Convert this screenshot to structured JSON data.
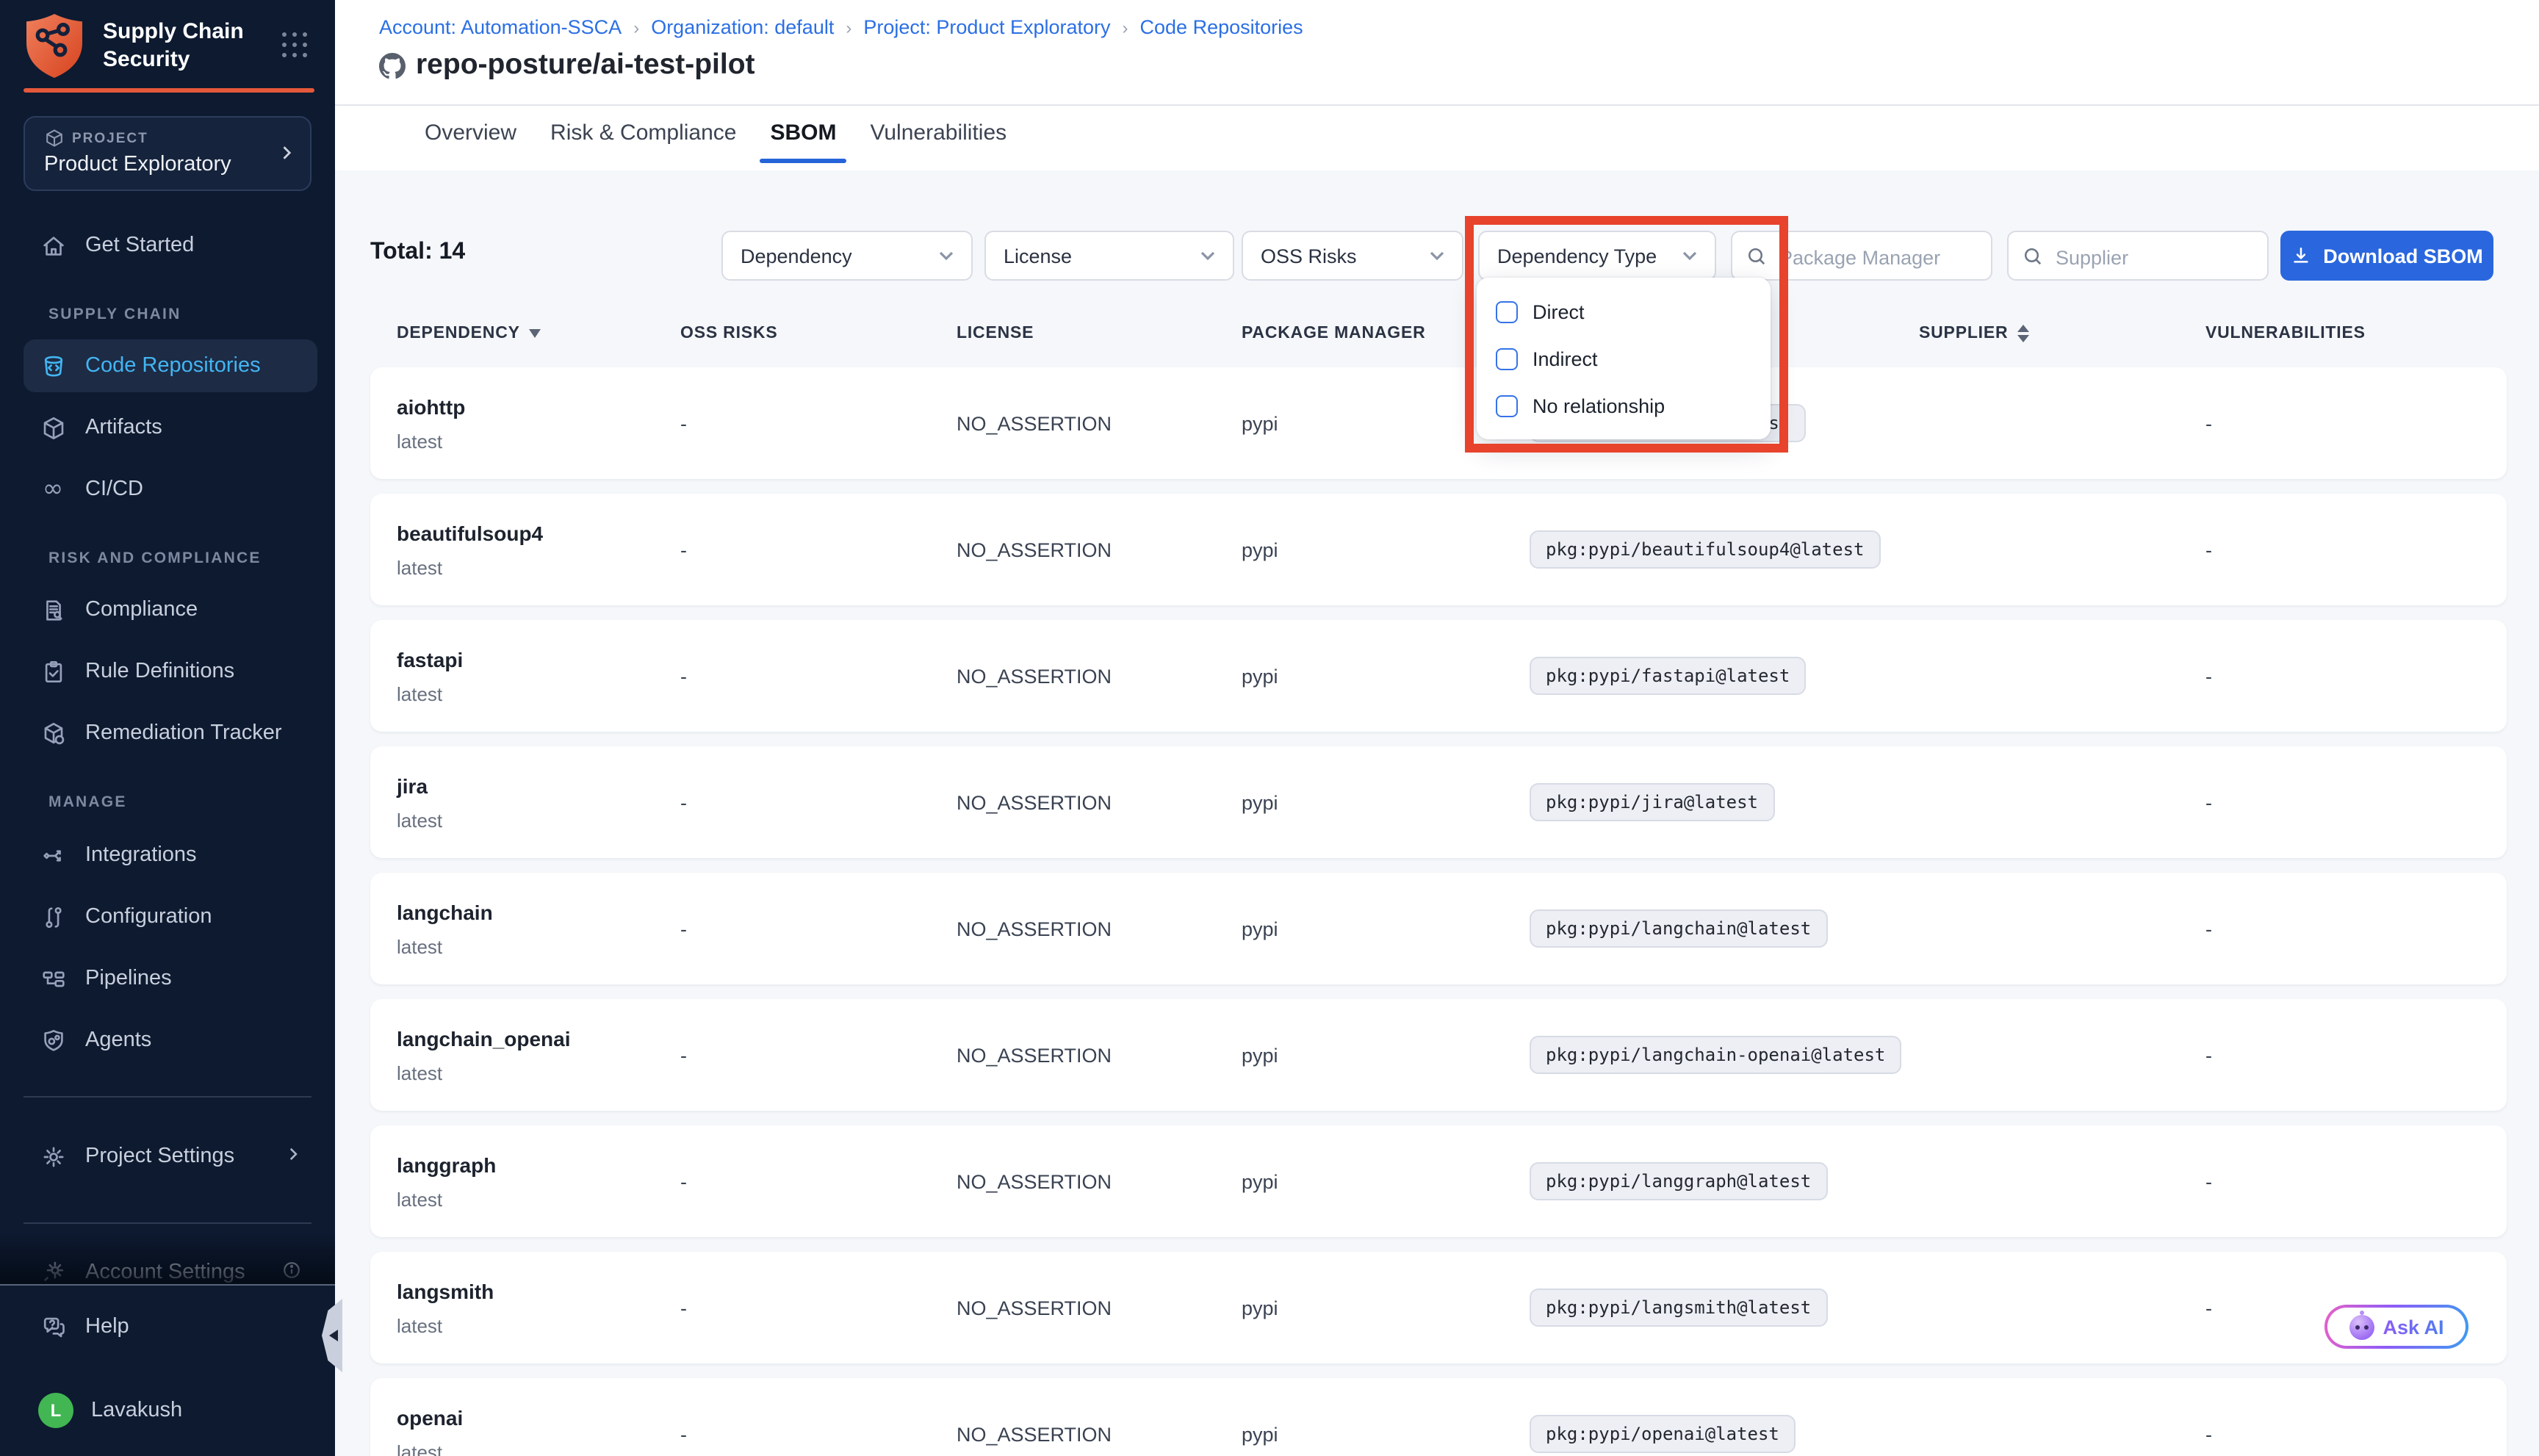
{
  "brand": {
    "app_line1": "Supply Chain",
    "app_line2": "Security"
  },
  "project_selector": {
    "label": "PROJECT",
    "name": "Product Exploratory"
  },
  "sidebar": {
    "get_started": "Get Started",
    "groups": [
      {
        "title": "SUPPLY CHAIN",
        "items": [
          {
            "label": "Code Repositories",
            "icon": "code-repositories-icon",
            "active": true
          },
          {
            "label": "Artifacts",
            "icon": "artifacts-icon",
            "active": false
          },
          {
            "label": "CI/CD",
            "icon": "cicd-icon",
            "active": false
          }
        ]
      },
      {
        "title": "RISK AND COMPLIANCE",
        "items": [
          {
            "label": "Compliance",
            "icon": "compliance-icon",
            "active": false
          },
          {
            "label": "Rule Definitions",
            "icon": "rule-definitions-icon",
            "active": false
          },
          {
            "label": "Remediation Tracker",
            "icon": "remediation-tracker-icon",
            "active": false
          }
        ]
      },
      {
        "title": "MANAGE",
        "items": [
          {
            "label": "Integrations",
            "icon": "integrations-icon",
            "active": false
          },
          {
            "label": "Configuration",
            "icon": "configuration-icon",
            "active": false
          },
          {
            "label": "Pipelines",
            "icon": "pipelines-icon",
            "active": false
          },
          {
            "label": "Agents",
            "icon": "agents-icon",
            "active": false
          }
        ]
      }
    ],
    "project_settings": "Project Settings",
    "account_settings": "Account Settings",
    "help": "Help",
    "user": {
      "name": "Lavakush",
      "initial": "L"
    }
  },
  "breadcrumb": [
    "Account: Automation-SSCA",
    "Organization: default",
    "Project: Product Exploratory",
    "Code Repositories"
  ],
  "page": {
    "title": "repo-posture/ai-test-pilot"
  },
  "tabs": [
    {
      "label": "Overview",
      "active": false
    },
    {
      "label": "Risk & Compliance",
      "active": false
    },
    {
      "label": "SBOM",
      "active": true
    },
    {
      "label": "Vulnerabilities",
      "active": false
    }
  ],
  "toolbar": {
    "total": "Total: 14",
    "filters": {
      "dependency": "Dependency",
      "license": "License",
      "oss_risks": "OSS Risks",
      "dependency_type": "Dependency Type"
    },
    "package_manager_placeholder": "Package Manager",
    "supplier_placeholder": "Supplier",
    "download_label": "Download SBOM"
  },
  "dependency_type_menu": {
    "options": [
      {
        "label": "Direct",
        "checked": false
      },
      {
        "label": "Indirect",
        "checked": false
      },
      {
        "label": "No relationship",
        "checked": false
      }
    ]
  },
  "table": {
    "headers": [
      "DEPENDENCY",
      "OSS RISKS",
      "LICENSE",
      "PACKAGE MANAGER",
      "",
      "SUPPLIER",
      "VULNERABILITIES"
    ],
    "rows": [
      {
        "name": "aiohttp",
        "version": "latest",
        "oss_risks": "-",
        "license": "NO_ASSERTION",
        "package_manager": "pypi",
        "purl": "pkg:pypi/aiohttp@latest",
        "supplier": "",
        "vulnerabilities": "-"
      },
      {
        "name": "beautifulsoup4",
        "version": "latest",
        "oss_risks": "-",
        "license": "NO_ASSERTION",
        "package_manager": "pypi",
        "purl": "pkg:pypi/beautifulsoup4@latest",
        "supplier": "",
        "vulnerabilities": "-"
      },
      {
        "name": "fastapi",
        "version": "latest",
        "oss_risks": "-",
        "license": "NO_ASSERTION",
        "package_manager": "pypi",
        "purl": "pkg:pypi/fastapi@latest",
        "supplier": "",
        "vulnerabilities": "-"
      },
      {
        "name": "jira",
        "version": "latest",
        "oss_risks": "-",
        "license": "NO_ASSERTION",
        "package_manager": "pypi",
        "purl": "pkg:pypi/jira@latest",
        "supplier": "",
        "vulnerabilities": "-"
      },
      {
        "name": "langchain",
        "version": "latest",
        "oss_risks": "-",
        "license": "NO_ASSERTION",
        "package_manager": "pypi",
        "purl": "pkg:pypi/langchain@latest",
        "supplier": "",
        "vulnerabilities": "-"
      },
      {
        "name": "langchain_openai",
        "version": "latest",
        "oss_risks": "-",
        "license": "NO_ASSERTION",
        "package_manager": "pypi",
        "purl": "pkg:pypi/langchain-openai@latest",
        "supplier": "",
        "vulnerabilities": "-"
      },
      {
        "name": "langgraph",
        "version": "latest",
        "oss_risks": "-",
        "license": "NO_ASSERTION",
        "package_manager": "pypi",
        "purl": "pkg:pypi/langgraph@latest",
        "supplier": "",
        "vulnerabilities": "-"
      },
      {
        "name": "langsmith",
        "version": "latest",
        "oss_risks": "-",
        "license": "NO_ASSERTION",
        "package_manager": "pypi",
        "purl": "pkg:pypi/langsmith@latest",
        "supplier": "",
        "vulnerabilities": "-"
      },
      {
        "name": "openai",
        "version": "latest",
        "oss_risks": "-",
        "license": "NO_ASSERTION",
        "package_manager": "pypi",
        "purl": "pkg:pypi/openai@latest",
        "supplier": "",
        "vulnerabilities": "-"
      }
    ]
  },
  "ask_ai": {
    "label": "Ask AI"
  },
  "colors": {
    "sidebar_bg": "#0d1a30",
    "active_item_bg": "#1d2b45",
    "active_item_text": "#43b5f2",
    "brand_orange": "#e4583b",
    "breadcrumb_blue": "#2b6fe4",
    "tab_underline_blue": "#2563d9",
    "download_button_blue": "#2a67de",
    "annotation_red": "#e8432c",
    "avatar_green": "#41b653",
    "content_bg": "#f5f7fa"
  }
}
